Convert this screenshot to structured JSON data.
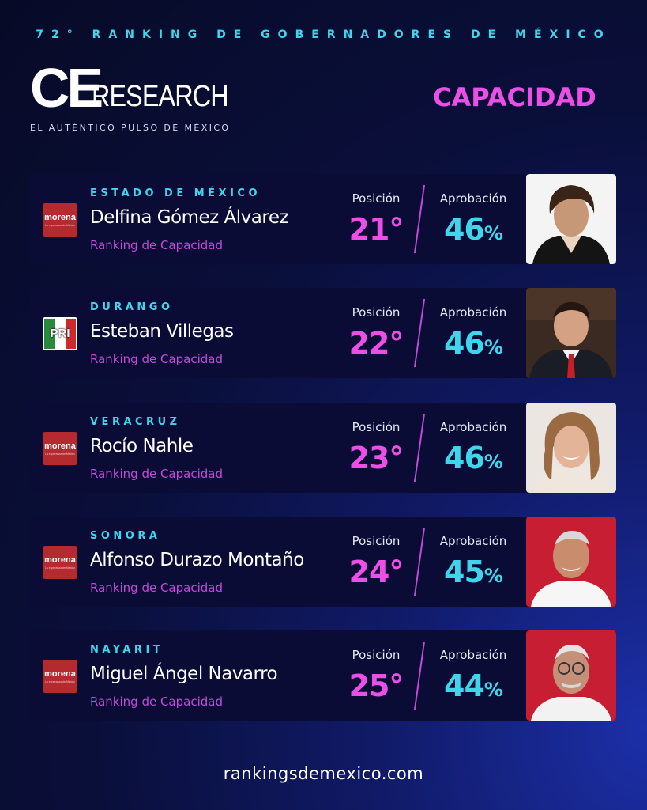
{
  "header": {
    "title": "72° RANKING DE GOBERNADORES DE MÉXICO",
    "logo_ce": "CE",
    "logo_research": "RESEARCH",
    "tagline": "EL AUTÉNTICO PULSO DE MÉXICO",
    "category": "CAPACIDAD"
  },
  "labels": {
    "position": "Posición",
    "approval": "Aprobación",
    "subtitle": "Ranking de Capacidad"
  },
  "governors": [
    {
      "state": "ESTADO DE MÉXICO",
      "name": "Delfina Gómez Álvarez",
      "party": "morena",
      "party_slogan": "La esperanza de México",
      "position": "21°",
      "approval": "46",
      "pct": "%"
    },
    {
      "state": "DURANGO",
      "name": "Esteban Villegas",
      "party": "PRI",
      "party_slogan": "",
      "position": "22°",
      "approval": "46",
      "pct": "%"
    },
    {
      "state": "VERACRUZ",
      "name": "Rocío Nahle",
      "party": "morena",
      "party_slogan": "La esperanza de México",
      "position": "23°",
      "approval": "46",
      "pct": "%"
    },
    {
      "state": "SONORA",
      "name": "Alfonso Durazo Montaño",
      "party": "morena",
      "party_slogan": "La esperanza de México",
      "position": "24°",
      "approval": "45",
      "pct": "%"
    },
    {
      "state": "NAYARIT",
      "name": "Miguel Ángel Navarro",
      "party": "morena",
      "party_slogan": "La esperanza de México",
      "position": "25°",
      "approval": "44",
      "pct": "%"
    }
  ],
  "footer": {
    "url": "rankingsdemexico.com"
  },
  "colors": {
    "accent_cyan": "#3fd6ec",
    "accent_magenta": "#ec4fe6",
    "card_bg": "#0a0c35",
    "morena_red": "#b42a2e"
  }
}
